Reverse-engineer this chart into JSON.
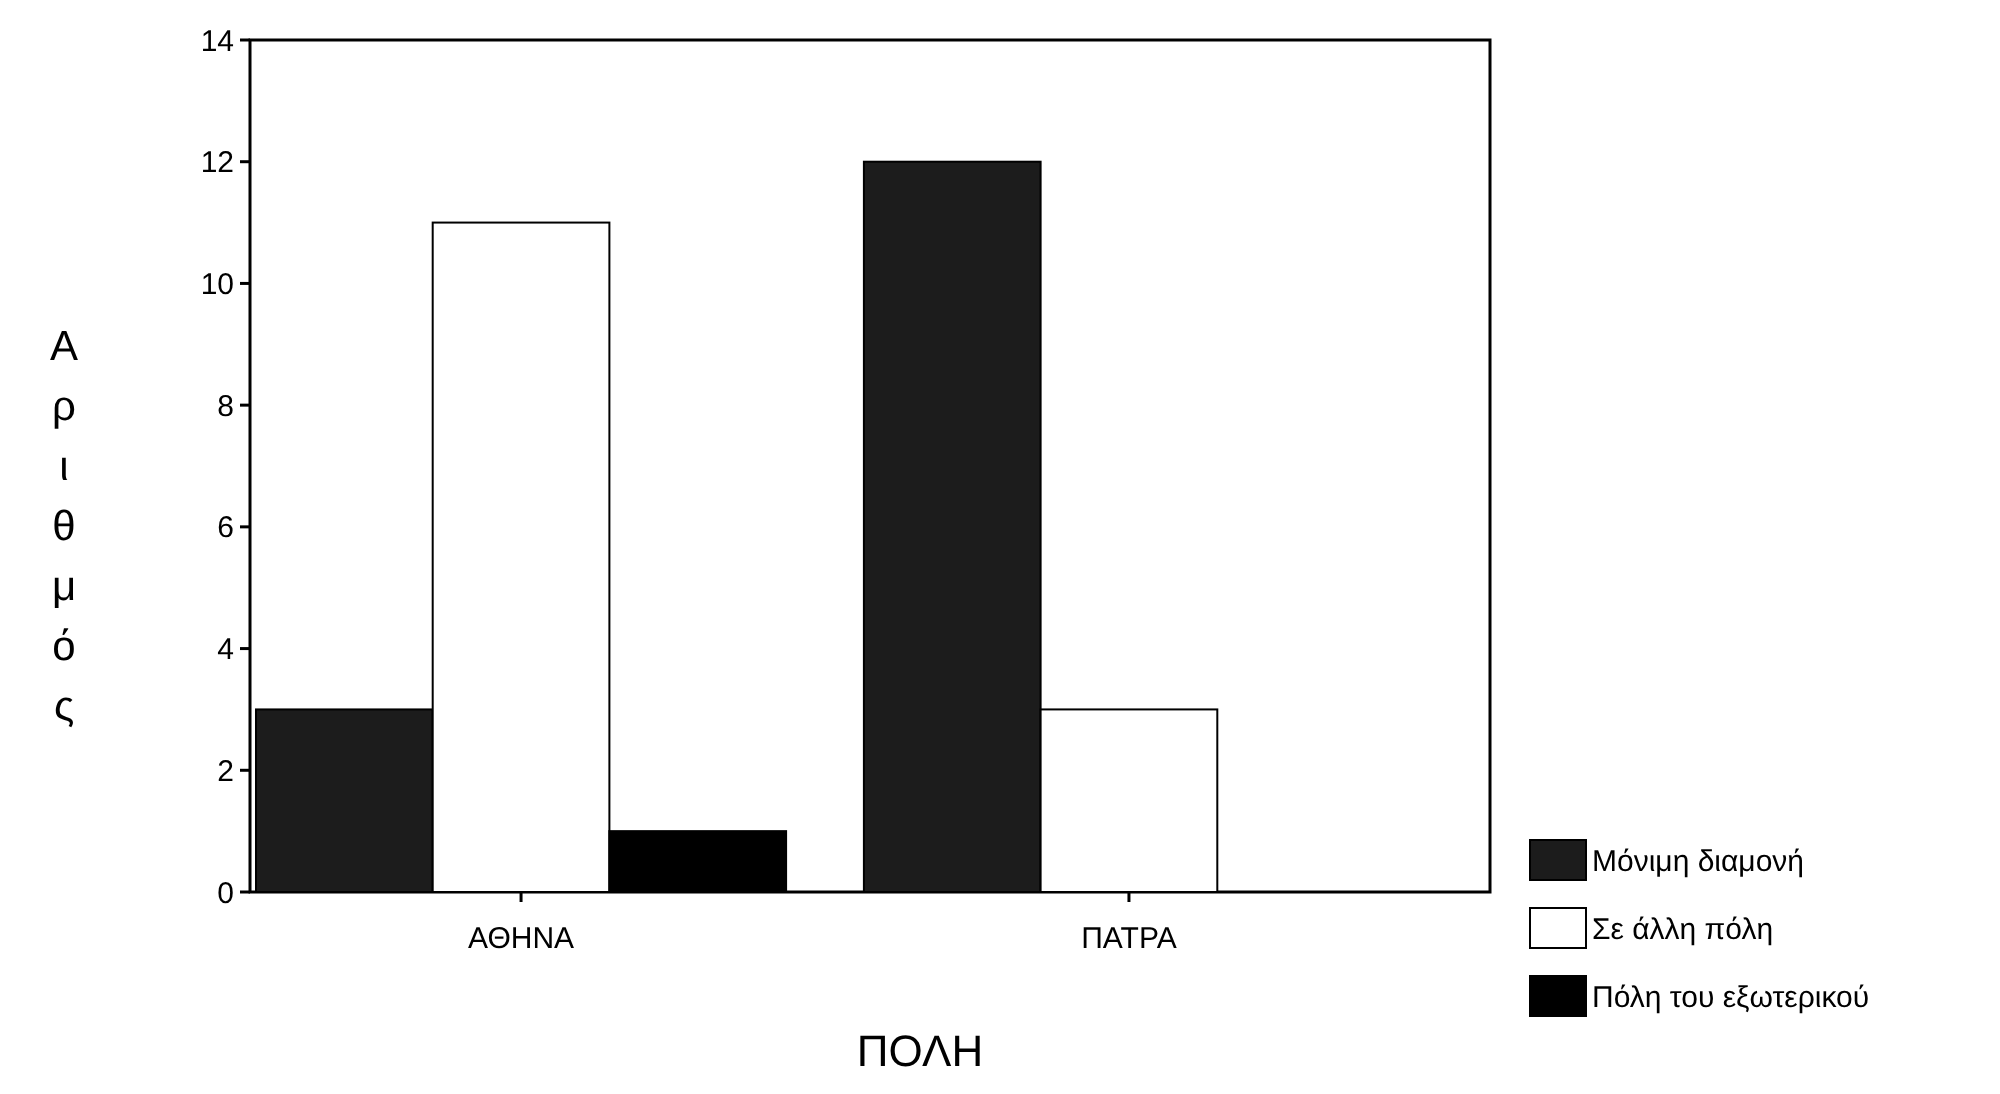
{
  "chart_data": {
    "type": "bar",
    "categories": [
      "ΑΘΗΝΑ",
      "ΠΑΤΡΑ"
    ],
    "series": [
      {
        "name": "Μόνιμη διαμονή",
        "color": "#1c1c1c",
        "values": [
          3,
          12
        ]
      },
      {
        "name": "Σε άλλη πόλη",
        "color": "#ffffff",
        "values": [
          11,
          3
        ]
      },
      {
        "name": "Πόλη του εξωτερικού",
        "color": "#000000",
        "values": [
          1,
          0
        ]
      }
    ],
    "xlabel": "ΠΟΛΗ",
    "ylabel": "Αριθμός",
    "ylim": [
      0,
      14
    ],
    "yticks": [
      0,
      2,
      4,
      6,
      8,
      10,
      12,
      14
    ],
    "grid": false,
    "legend": "right"
  }
}
